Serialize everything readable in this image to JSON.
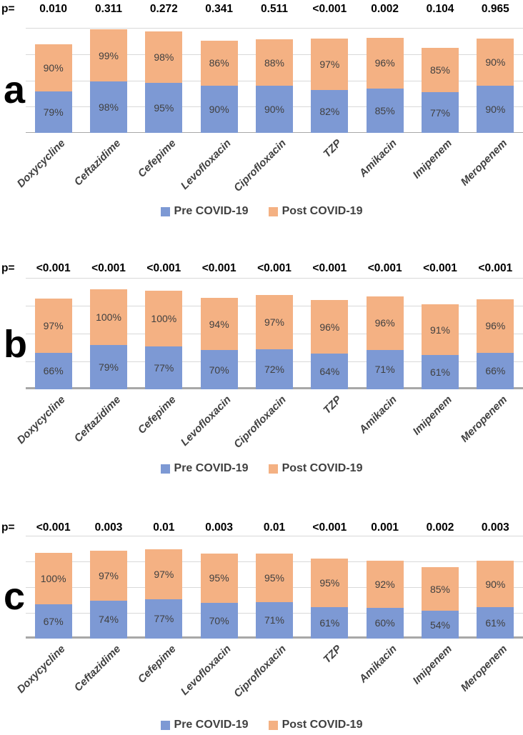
{
  "figure": {
    "p_prefix": "p="
  },
  "legend": {
    "pre": "Pre COVID-19",
    "post": "Post COVID-19"
  },
  "colors": {
    "pre_fill": "#7D99D4",
    "post_fill": "#F4B183",
    "value_label": "#404040",
    "p_label": "#000000",
    "category_label": "#404040",
    "gridline": "#D9D9D9",
    "baseline": "#A8A8A8",
    "panel_letter": "#000000"
  },
  "categories": [
    "Doxycycline",
    "Ceftazidime",
    "Cefepime",
    "Levofloxacin",
    "Ciprofloxacin",
    "TZP",
    "Amikacin",
    "Imipenem",
    "Meropenem"
  ],
  "chart_data": [
    {
      "type": "bar",
      "stacked": true,
      "panel_label": "a",
      "categories": [
        "Doxycycline",
        "Ceftazidime",
        "Cefepime",
        "Levofloxacin",
        "Ciprofloxacin",
        "TZP",
        "Amikacin",
        "Imipenem",
        "Meropenem"
      ],
      "series": [
        {
          "name": "Pre COVID-19",
          "values": [
            79,
            98,
            95,
            90,
            90,
            82,
            85,
            77,
            90
          ]
        },
        {
          "name": "Post COVID-19",
          "values": [
            90,
            99,
            98,
            86,
            88,
            97,
            96,
            85,
            90
          ]
        }
      ],
      "p_values": [
        "0.010",
        "0.311",
        "0.272",
        "0.341",
        "0.511",
        "<0.001",
        "0.002",
        "0.104",
        "0.965"
      ],
      "value_suffix": "%",
      "ylim": [
        0,
        200
      ],
      "gridline_step": 50,
      "grid": true,
      "legend_position": "bottom"
    },
    {
      "type": "bar",
      "stacked": true,
      "panel_label": "b",
      "categories": [
        "Doxycycline",
        "Ceftazidime",
        "Cefepime",
        "Levofloxacin",
        "Ciprofloxacin",
        "TZP",
        "Amikacin",
        "Imipenem",
        "Meropenem"
      ],
      "series": [
        {
          "name": "Pre COVID-19",
          "values": [
            66,
            79,
            77,
            70,
            72,
            64,
            71,
            61,
            66
          ]
        },
        {
          "name": "Post COVID-19",
          "values": [
            97,
            100,
            100,
            94,
            97,
            96,
            96,
            91,
            96
          ]
        }
      ],
      "p_values": [
        "<0.001",
        "<0.001",
        "<0.001",
        "<0.001",
        "<0.001",
        "<0.001",
        "<0.001",
        "<0.001",
        "<0.001"
      ],
      "value_suffix": "%",
      "ylim": [
        0,
        200
      ],
      "gridline_step": 50,
      "grid": true,
      "legend_position": "bottom"
    },
    {
      "type": "bar",
      "stacked": true,
      "panel_label": "c",
      "categories": [
        "Doxycycline",
        "Ceftazidime",
        "Cefepime",
        "Levofloxacin",
        "Ciprofloxacin",
        "TZP",
        "Amikacin",
        "Imipenem",
        "Meropenem"
      ],
      "series": [
        {
          "name": "Pre COVID-19",
          "values": [
            67,
            74,
            77,
            70,
            71,
            61,
            60,
            54,
            61
          ]
        },
        {
          "name": "Post COVID-19",
          "values": [
            100,
            97,
            97,
            95,
            95,
            95,
            92,
            85,
            90
          ]
        }
      ],
      "p_values": [
        "<0.001",
        "0.003",
        "0.01",
        "0.003",
        "0.01",
        "<0.001",
        "0.001",
        "0.002",
        "0.003"
      ],
      "value_suffix": "%",
      "ylim": [
        0,
        200
      ],
      "gridline_step": 50,
      "grid": true,
      "legend_position": "bottom"
    }
  ]
}
